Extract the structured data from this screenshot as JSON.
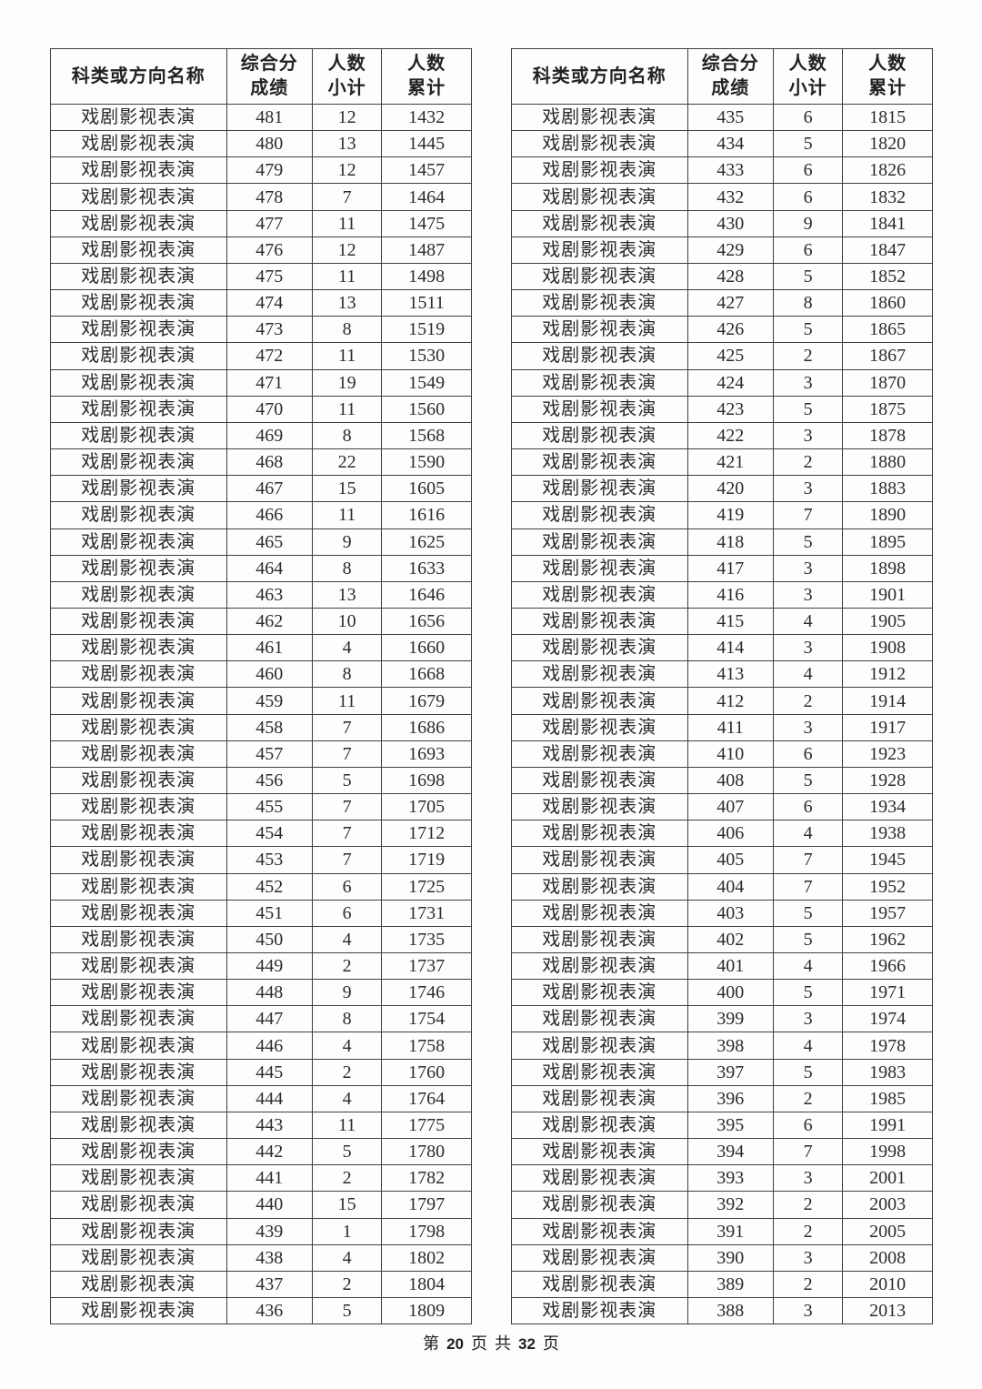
{
  "category_label": "戏剧影视表演",
  "left_table": {
    "headers": [
      "科类或方向名称",
      "综合分\n成绩",
      "人数\n小计",
      "人数\n累计"
    ],
    "rows": [
      [
        "戏剧影视表演",
        481,
        12,
        1432
      ],
      [
        "戏剧影视表演",
        480,
        13,
        1445
      ],
      [
        "戏剧影视表演",
        479,
        12,
        1457
      ],
      [
        "戏剧影视表演",
        478,
        7,
        1464
      ],
      [
        "戏剧影视表演",
        477,
        11,
        1475
      ],
      [
        "戏剧影视表演",
        476,
        12,
        1487
      ],
      [
        "戏剧影视表演",
        475,
        11,
        1498
      ],
      [
        "戏剧影视表演",
        474,
        13,
        1511
      ],
      [
        "戏剧影视表演",
        473,
        8,
        1519
      ],
      [
        "戏剧影视表演",
        472,
        11,
        1530
      ],
      [
        "戏剧影视表演",
        471,
        19,
        1549
      ],
      [
        "戏剧影视表演",
        470,
        11,
        1560
      ],
      [
        "戏剧影视表演",
        469,
        8,
        1568
      ],
      [
        "戏剧影视表演",
        468,
        22,
        1590
      ],
      [
        "戏剧影视表演",
        467,
        15,
        1605
      ],
      [
        "戏剧影视表演",
        466,
        11,
        1616
      ],
      [
        "戏剧影视表演",
        465,
        9,
        1625
      ],
      [
        "戏剧影视表演",
        464,
        8,
        1633
      ],
      [
        "戏剧影视表演",
        463,
        13,
        1646
      ],
      [
        "戏剧影视表演",
        462,
        10,
        1656
      ],
      [
        "戏剧影视表演",
        461,
        4,
        1660
      ],
      [
        "戏剧影视表演",
        460,
        8,
        1668
      ],
      [
        "戏剧影视表演",
        459,
        11,
        1679
      ],
      [
        "戏剧影视表演",
        458,
        7,
        1686
      ],
      [
        "戏剧影视表演",
        457,
        7,
        1693
      ],
      [
        "戏剧影视表演",
        456,
        5,
        1698
      ],
      [
        "戏剧影视表演",
        455,
        7,
        1705
      ],
      [
        "戏剧影视表演",
        454,
        7,
        1712
      ],
      [
        "戏剧影视表演",
        453,
        7,
        1719
      ],
      [
        "戏剧影视表演",
        452,
        6,
        1725
      ],
      [
        "戏剧影视表演",
        451,
        6,
        1731
      ],
      [
        "戏剧影视表演",
        450,
        4,
        1735
      ],
      [
        "戏剧影视表演",
        449,
        2,
        1737
      ],
      [
        "戏剧影视表演",
        448,
        9,
        1746
      ],
      [
        "戏剧影视表演",
        447,
        8,
        1754
      ],
      [
        "戏剧影视表演",
        446,
        4,
        1758
      ],
      [
        "戏剧影视表演",
        445,
        2,
        1760
      ],
      [
        "戏剧影视表演",
        444,
        4,
        1764
      ],
      [
        "戏剧影视表演",
        443,
        11,
        1775
      ],
      [
        "戏剧影视表演",
        442,
        5,
        1780
      ],
      [
        "戏剧影视表演",
        441,
        2,
        1782
      ],
      [
        "戏剧影视表演",
        440,
        15,
        1797
      ],
      [
        "戏剧影视表演",
        439,
        1,
        1798
      ],
      [
        "戏剧影视表演",
        438,
        4,
        1802
      ],
      [
        "戏剧影视表演",
        437,
        2,
        1804
      ],
      [
        "戏剧影视表演",
        436,
        5,
        1809
      ]
    ]
  },
  "right_table": {
    "headers": [
      "科类或方向名称",
      "综合分\n成绩",
      "人数\n小计",
      "人数\n累计"
    ],
    "rows": [
      [
        "戏剧影视表演",
        435,
        6,
        1815
      ],
      [
        "戏剧影视表演",
        434,
        5,
        1820
      ],
      [
        "戏剧影视表演",
        433,
        6,
        1826
      ],
      [
        "戏剧影视表演",
        432,
        6,
        1832
      ],
      [
        "戏剧影视表演",
        430,
        9,
        1841
      ],
      [
        "戏剧影视表演",
        429,
        6,
        1847
      ],
      [
        "戏剧影视表演",
        428,
        5,
        1852
      ],
      [
        "戏剧影视表演",
        427,
        8,
        1860
      ],
      [
        "戏剧影视表演",
        426,
        5,
        1865
      ],
      [
        "戏剧影视表演",
        425,
        2,
        1867
      ],
      [
        "戏剧影视表演",
        424,
        3,
        1870
      ],
      [
        "戏剧影视表演",
        423,
        5,
        1875
      ],
      [
        "戏剧影视表演",
        422,
        3,
        1878
      ],
      [
        "戏剧影视表演",
        421,
        2,
        1880
      ],
      [
        "戏剧影视表演",
        420,
        3,
        1883
      ],
      [
        "戏剧影视表演",
        419,
        7,
        1890
      ],
      [
        "戏剧影视表演",
        418,
        5,
        1895
      ],
      [
        "戏剧影视表演",
        417,
        3,
        1898
      ],
      [
        "戏剧影视表演",
        416,
        3,
        1901
      ],
      [
        "戏剧影视表演",
        415,
        4,
        1905
      ],
      [
        "戏剧影视表演",
        414,
        3,
        1908
      ],
      [
        "戏剧影视表演",
        413,
        4,
        1912
      ],
      [
        "戏剧影视表演",
        412,
        2,
        1914
      ],
      [
        "戏剧影视表演",
        411,
        3,
        1917
      ],
      [
        "戏剧影视表演",
        410,
        6,
        1923
      ],
      [
        "戏剧影视表演",
        408,
        5,
        1928
      ],
      [
        "戏剧影视表演",
        407,
        6,
        1934
      ],
      [
        "戏剧影视表演",
        406,
        4,
        1938
      ],
      [
        "戏剧影视表演",
        405,
        7,
        1945
      ],
      [
        "戏剧影视表演",
        404,
        7,
        1952
      ],
      [
        "戏剧影视表演",
        403,
        5,
        1957
      ],
      [
        "戏剧影视表演",
        402,
        5,
        1962
      ],
      [
        "戏剧影视表演",
        401,
        4,
        1966
      ],
      [
        "戏剧影视表演",
        400,
        5,
        1971
      ],
      [
        "戏剧影视表演",
        399,
        3,
        1974
      ],
      [
        "戏剧影视表演",
        398,
        4,
        1978
      ],
      [
        "戏剧影视表演",
        397,
        5,
        1983
      ],
      [
        "戏剧影视表演",
        396,
        2,
        1985
      ],
      [
        "戏剧影视表演",
        395,
        6,
        1991
      ],
      [
        "戏剧影视表演",
        394,
        7,
        1998
      ],
      [
        "戏剧影视表演",
        393,
        3,
        2001
      ],
      [
        "戏剧影视表演",
        392,
        2,
        2003
      ],
      [
        "戏剧影视表演",
        391,
        2,
        2005
      ],
      [
        "戏剧影视表演",
        390,
        3,
        2008
      ],
      [
        "戏剧影视表演",
        389,
        2,
        2010
      ],
      [
        "戏剧影视表演",
        388,
        3,
        2013
      ]
    ]
  },
  "footer": {
    "prefix": "第",
    "page_number": "20",
    "middle1": "页",
    "middle2": "共",
    "total_pages": "32",
    "suffix": "页"
  }
}
